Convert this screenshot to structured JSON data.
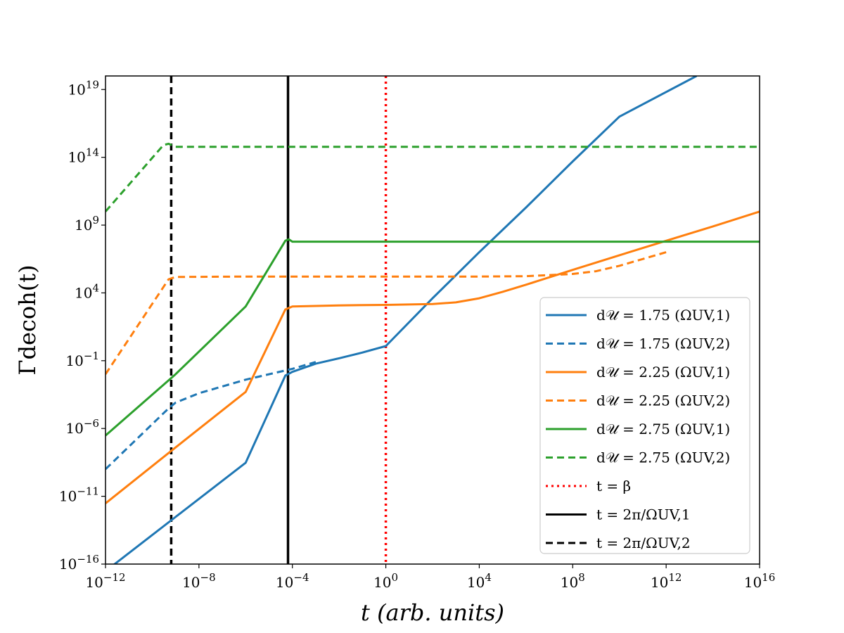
{
  "chart_data": {
    "type": "line",
    "xscale": "log",
    "yscale": "log",
    "xlim": [
      1e-12,
      1e+16
    ],
    "ylim": [
      1e-16,
      1e+20
    ],
    "xlabel": "t (arb. units)",
    "ylabel": "Γdecoh(t)",
    "x_tick_labels": [
      "10−12",
      "10−8",
      "10−4",
      "100",
      "104",
      "108",
      "1012",
      "1016"
    ],
    "y_tick_labels": [
      "10−16",
      "10−11",
      "10−6",
      "10−1",
      "104",
      "109",
      "1014",
      "1019"
    ],
    "legend_position": "lower right",
    "colors": {
      "blue": "#1f77b4",
      "orange": "#ff7f0e",
      "green": "#2ca02c",
      "red": "#ff0000",
      "black": "#000000"
    },
    "series": [
      {
        "name": "d𝒰 = 1.75 (ΩUV,1)",
        "color": "#1f77b4",
        "style": "solid",
        "x": [
          1e-12,
          1e-09,
          1e-06,
          5e-05,
          0.0001,
          0.001,
          0.01,
          0.1,
          1,
          100.0,
          10000.0,
          1000000.0,
          100000000.0,
          10000000000.0,
          20000000000000.0
        ],
        "y": [
          3e-17,
          3e-13,
          3e-09,
          0.008,
          0.015,
          0.06,
          0.15,
          0.4,
          1.2,
          4000.0,
          10000000.0,
          20000000000.0,
          50000000000000.0,
          1e+17,
          1e+20
        ]
      },
      {
        "name": "d𝒰 = 1.75 (ΩUV,2)",
        "color": "#1f77b4",
        "style": "dashed",
        "x": [
          1e-12,
          5e-10,
          1e-09,
          1e-08,
          1e-06,
          0.0001,
          0.001
        ],
        "y": [
          1e-09,
          3e-05,
          8e-05,
          0.0004,
          0.004,
          0.025,
          0.08
        ]
      },
      {
        "name": "d𝒰 = 2.25 (ΩUV,1)",
        "color": "#ff7f0e",
        "style": "solid",
        "x": [
          1e-12,
          1e-09,
          1e-06,
          5e-05,
          0.0001,
          0.01,
          1,
          100.0,
          1000.0,
          10000.0,
          100000.0,
          1000000.0,
          100000000.0,
          10000000000.0,
          1000000000000.0,
          100000000000000.0,
          1e+16
        ],
        "y": [
          3e-12,
          4e-08,
          0.0005,
          600.0,
          1000.0,
          1200.0,
          1300.0,
          1500.0,
          2000.0,
          4000.0,
          12000.0,
          40000.0,
          500000.0,
          6000000.0,
          70000000.0,
          800000000.0,
          10000000000.0
        ]
      },
      {
        "name": "d𝒰 = 2.25 (ΩUV,2)",
        "color": "#ff7f0e",
        "style": "dashed",
        "x": [
          1e-12,
          5e-10,
          1e-09,
          1e-06,
          0.01,
          1,
          10000.0,
          1000000.0,
          100000000.0,
          1000000000.0,
          10000000000.0,
          1000000000000.0
        ],
        "y": [
          0.01,
          100000.0,
          150000.0,
          160000.0,
          160000.0,
          160000.0,
          160000.0,
          170000.0,
          250000.0,
          400000.0,
          1000000.0,
          10000000.0
        ]
      },
      {
        "name": "d𝒰 = 2.75 (ΩUV,1)",
        "color": "#2ca02c",
        "style": "solid",
        "x": [
          1e-12,
          1e-09,
          1e-06,
          5e-05,
          7e-05,
          0.0001,
          0.01,
          1,
          10000.0,
          100000000.0,
          1000000000000.0,
          1e+16
        ],
        "y": [
          3e-07,
          0.01,
          1000.0,
          70000000.0,
          90000000.0,
          60000000.0,
          60000000.0,
          60000000.0,
          60000000.0,
          60000000.0,
          60000000.0,
          60000000.0
        ]
      },
      {
        "name": "d𝒰 = 2.75 (ΩUV,2)",
        "color": "#2ca02c",
        "style": "dashed",
        "x": [
          1e-12,
          3e-10,
          5e-10,
          1e-09,
          1e-06,
          0.01,
          1,
          10000.0,
          100000000.0,
          1000000000000.0,
          1e+16
        ],
        "y": [
          10000000000.0,
          800000000000000.0,
          1000000000000000.0,
          600000000000000.0,
          600000000000000.0,
          600000000000000.0,
          600000000000000.0,
          600000000000000.0,
          600000000000000.0,
          600000000000000.0,
          600000000000000.0
        ]
      }
    ],
    "vlines": [
      {
        "name": "t = β",
        "x": 1,
        "color": "#ff0000",
        "style": "dotted"
      },
      {
        "name": "t = 2π/ΩUV,1",
        "x": 6.5e-05,
        "color": "#000000",
        "style": "solid"
      },
      {
        "name": "t = 2π/ΩUV,2",
        "x": 6.5e-10,
        "color": "#000000",
        "style": "dashed"
      }
    ]
  }
}
